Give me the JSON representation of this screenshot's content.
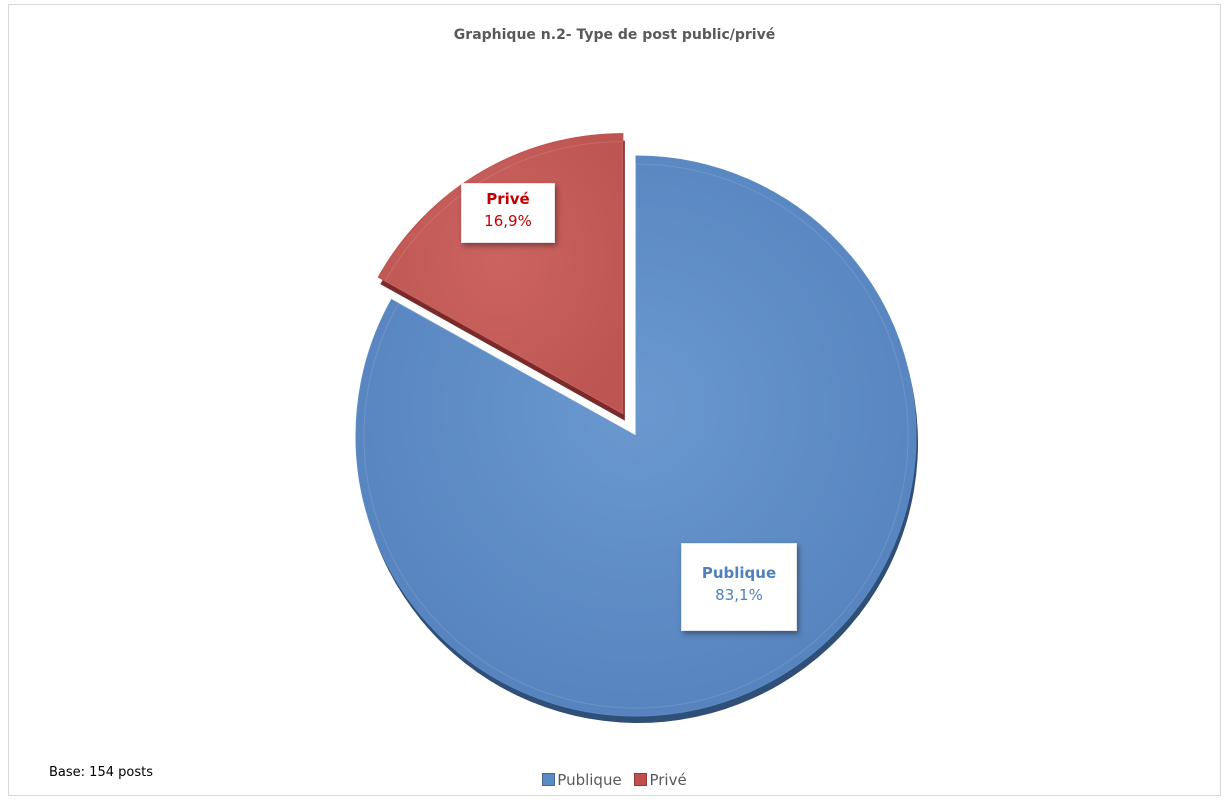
{
  "chart_data": {
    "type": "pie",
    "title": "Graphique n.2- Type de post public/privé",
    "categories": [
      "Publique",
      "Privé"
    ],
    "values": [
      83.1,
      16.9
    ],
    "value_labels": [
      "83,1%",
      "16,9%"
    ],
    "colors": [
      "#5b8bc3",
      "#c0504d"
    ],
    "exploded": [
      "Privé"
    ],
    "legend_position": "bottom",
    "note": "Base: 154  posts"
  }
}
